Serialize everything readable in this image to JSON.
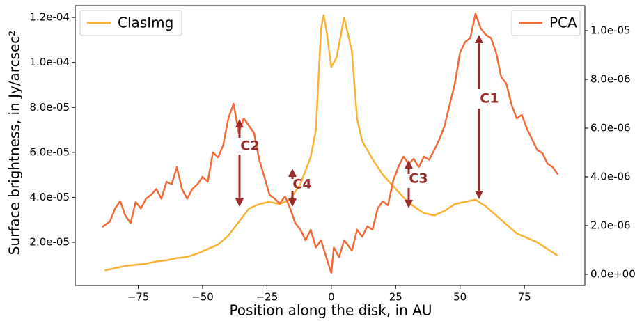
{
  "chart_data": {
    "type": "line",
    "xlabel": "Position along the disk, in AU",
    "ylabel": "Surface brightness, in Jy/arcsec²",
    "xlim": [
      -99.5,
      98.5
    ],
    "xticks": [
      {
        "value": -75,
        "label": "−75"
      },
      {
        "value": -50,
        "label": "−50"
      },
      {
        "value": -25,
        "label": "−25"
      },
      0,
      25,
      50,
      75
    ],
    "ylim": [
      8e-07,
      0.0001253
    ],
    "yticks": [
      {
        "value": 2e-05,
        "label": "2.0e-05"
      },
      {
        "value": 4e-05,
        "label": "4.0e-05"
      },
      {
        "value": 6e-05,
        "label": "6.0e-05"
      },
      {
        "value": 8e-05,
        "label": "8.0e-05"
      },
      {
        "value": 0.0001,
        "label": "1.0e-04"
      },
      {
        "value": 0.00012,
        "label": "1.2e-04"
      }
    ],
    "y2lim": [
      -4.6e-07,
      1.103e-05
    ],
    "y2ticks": [
      {
        "value": 0,
        "label": "0.0e+00"
      },
      {
        "value": 2e-06,
        "label": "2.0e-06"
      },
      {
        "value": 4e-06,
        "label": "4.0e-06"
      },
      {
        "value": 6e-06,
        "label": "6.0e-06"
      },
      {
        "value": 8e-06,
        "label": "8.0e-06"
      },
      {
        "value": 1e-05,
        "label": "1.0e-05"
      }
    ],
    "grid": false,
    "series": [
      {
        "name": "ClasImg",
        "color": "#f9b233",
        "legend": "upper left",
        "x": [
          -88,
          -84,
          -80,
          -76,
          -72,
          -68,
          -64,
          -60,
          -56,
          -52,
          -48,
          -44,
          -40,
          -36,
          -32,
          -28,
          -24,
          -20,
          -16,
          -12,
          -8,
          -6,
          -4,
          -3,
          -2,
          0,
          2,
          5,
          8,
          10,
          12,
          16,
          20,
          24,
          28,
          32,
          36,
          40,
          44,
          48,
          52,
          56,
          60,
          64,
          68,
          72,
          76,
          80,
          84,
          88
        ],
        "values": [
          7.5e-06,
          8.5e-06,
          9.5e-06,
          1e-05,
          1.05e-05,
          1.15e-05,
          1.2e-05,
          1.3e-05,
          1.35e-05,
          1.5e-05,
          1.7e-05,
          1.9e-05,
          2.3e-05,
          2.9e-05,
          3.5e-05,
          3.7e-05,
          3.8e-05,
          3.7e-05,
          3.9e-05,
          4.6e-05,
          5.8e-05,
          7e-05,
          0.000115,
          0.000121,
          0.000115,
          9.8e-05,
          0.000102,
          0.00012,
          0.000105,
          7.5e-05,
          6.5e-05,
          5.7e-05,
          5e-05,
          4.5e-05,
          4e-05,
          3.6e-05,
          3.3e-05,
          3.2e-05,
          3.4e-05,
          3.7e-05,
          3.8e-05,
          3.9e-05,
          3.6e-05,
          3.2e-05,
          2.8e-05,
          2.4e-05,
          2.2e-05,
          2e-05,
          1.7e-05,
          1.4e-05
        ]
      },
      {
        "name": "PCA",
        "color": "#f26a36",
        "axis": "y2",
        "legend": "upper right",
        "x": [
          -89,
          -86,
          -84,
          -82,
          -80,
          -78,
          -76,
          -74,
          -72,
          -70,
          -68,
          -66,
          -64,
          -62,
          -60,
          -58,
          -56,
          -54,
          -52,
          -50,
          -48,
          -46,
          -44,
          -42,
          -40,
          -38,
          -36,
          -34,
          -32,
          -30,
          -28,
          -26,
          -24,
          -22,
          -20,
          -18,
          -16,
          -14,
          -12,
          -10,
          -8,
          -6,
          -4,
          -2,
          0,
          1,
          3,
          5,
          8,
          10,
          12,
          14,
          16,
          18,
          20,
          22,
          24,
          26,
          28,
          30,
          32,
          34,
          36,
          38,
          40,
          42,
          44,
          46,
          48,
          50,
          52,
          54,
          56,
          58,
          60,
          62,
          64,
          66,
          68,
          70,
          72,
          74,
          76,
          78,
          80,
          82,
          84,
          86,
          88
        ],
        "values": [
          1.94e-06,
          2.17e-06,
          2.7e-06,
          3e-06,
          2.4e-06,
          2.1e-06,
          2.97e-06,
          2.7e-06,
          3.1e-06,
          3.26e-06,
          3.5e-06,
          3.1e-06,
          3.8e-06,
          3.7e-06,
          4.4e-06,
          3.5e-06,
          3.1e-06,
          3.5e-06,
          3.7e-06,
          4e-06,
          3.8e-06,
          5e-06,
          4.8e-06,
          5.3e-06,
          6.4e-06,
          7e-06,
          5.8e-06,
          6.4e-06,
          6.1e-06,
          5.8e-06,
          4.7e-06,
          4e-06,
          3.26e-06,
          3.1e-06,
          2.9e-06,
          3.2e-06,
          2.7e-06,
          2.1e-06,
          1.83e-06,
          1.4e-06,
          1.83e-06,
          1.1e-06,
          1.4e-06,
          7e-07,
          6e-08,
          1.1e-06,
          7e-07,
          1.4e-06,
          9.7e-07,
          1.83e-06,
          1.54e-06,
          1.97e-06,
          1.83e-06,
          2.7e-06,
          3e-06,
          2.83e-06,
          3.83e-06,
          4.4e-06,
          4.83e-06,
          4.54e-06,
          4.74e-06,
          4.4e-06,
          4.83e-06,
          4.7e-06,
          5.1e-06,
          5.54e-06,
          6.1e-06,
          6.97e-06,
          7.83e-06,
          9.1e-06,
          9.54e-06,
          9.7e-06,
          1.07e-05,
          1.01e-05,
          9.83e-06,
          9.7e-06,
          9.1e-06,
          8.1e-06,
          7.83e-06,
          6.97e-06,
          6.4e-06,
          6.54e-06,
          5.97e-06,
          5.54e-06,
          5.1e-06,
          4.97e-06,
          4.54e-06,
          4.4e-06,
          4.1e-06
        ]
      }
    ],
    "annotations": [
      {
        "text": "C1"
      },
      {
        "text": "C2"
      },
      {
        "text": "C3"
      },
      {
        "text": "C4"
      }
    ]
  }
}
